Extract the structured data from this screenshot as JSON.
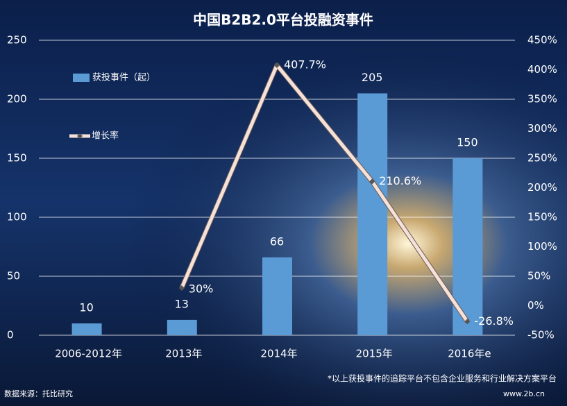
{
  "chart_data": {
    "type": "bar",
    "title": "中国B2B2.0平台投融资事件",
    "categories": [
      "2006-2012年",
      "2013年",
      "2014年",
      "2015年",
      "2016年e"
    ],
    "series": [
      {
        "name": "获投事件（起）",
        "type": "bar",
        "color": "#5b9bd5",
        "values": [
          10,
          13,
          66,
          205,
          150
        ]
      },
      {
        "name": "增长率",
        "type": "line",
        "axis": "y2",
        "color": "#f5e1d8",
        "values": [
          null,
          30,
          407.7,
          210.6,
          -26.8
        ],
        "value_labels": [
          null,
          "30%",
          "407.7%",
          "210.6%",
          "-26.8%"
        ]
      }
    ],
    "ylim": [
      0,
      250
    ],
    "yticks": [
      0,
      50,
      100,
      150,
      200,
      250
    ],
    "y2lim": [
      -50,
      450
    ],
    "y2ticks": [
      {
        "value": -50,
        "label": "-50%"
      },
      {
        "value": 0,
        "label": "0%"
      },
      {
        "value": 50,
        "label": "50%"
      },
      {
        "value": 100,
        "label": "100%"
      },
      {
        "value": 150,
        "label": "150%"
      },
      {
        "value": 200,
        "label": "200%"
      },
      {
        "value": 250,
        "label": "250%"
      },
      {
        "value": 300,
        "label": "300%"
      },
      {
        "value": 350,
        "label": "350%"
      },
      {
        "value": 400,
        "label": "400%"
      },
      {
        "value": 450,
        "label": "450%"
      }
    ],
    "grid": true,
    "legend": "upper left",
    "footnote": "*以上获投事件的追踪平台不包含企业服务和行业解决方案平台",
    "source": "数据来源：托比研究",
    "website": "www.2b.cn"
  }
}
